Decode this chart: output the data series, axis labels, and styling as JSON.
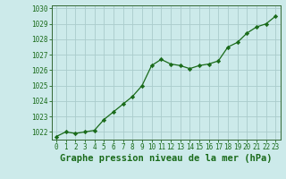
{
  "x": [
    0,
    1,
    2,
    3,
    4,
    5,
    6,
    7,
    8,
    9,
    10,
    11,
    12,
    13,
    14,
    15,
    16,
    17,
    18,
    19,
    20,
    21,
    22,
    23
  ],
  "y": [
    1021.7,
    1022.0,
    1021.9,
    1022.0,
    1022.1,
    1022.8,
    1023.3,
    1023.8,
    1024.3,
    1025.0,
    1026.3,
    1026.7,
    1026.4,
    1026.3,
    1026.1,
    1026.3,
    1026.4,
    1026.6,
    1027.5,
    1027.8,
    1028.4,
    1028.8,
    1029.0,
    1029.5
  ],
  "ylim": [
    1021.5,
    1030.2
  ],
  "yticks": [
    1022,
    1023,
    1024,
    1025,
    1026,
    1027,
    1028,
    1029,
    1030
  ],
  "xlim": [
    -0.5,
    23.5
  ],
  "xticks": [
    0,
    1,
    2,
    3,
    4,
    5,
    6,
    7,
    8,
    9,
    10,
    11,
    12,
    13,
    14,
    15,
    16,
    17,
    18,
    19,
    20,
    21,
    22,
    23
  ],
  "xlabel": "Graphe pression niveau de la mer (hPa)",
  "line_color": "#1a6b1a",
  "marker": "D",
  "marker_size": 2.2,
  "bg_color": "#cceaea",
  "grid_color": "#aacccc",
  "tick_label_fontsize": 5.5,
  "xlabel_fontsize": 7.5,
  "spine_color": "#336633"
}
